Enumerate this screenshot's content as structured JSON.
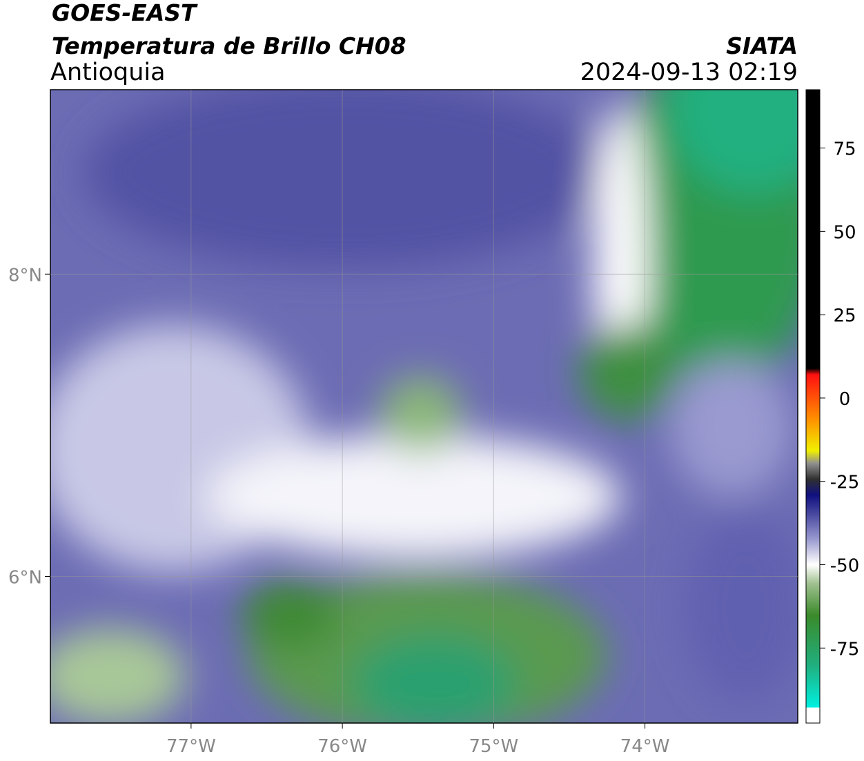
{
  "header": {
    "title": "GOES-EAST",
    "subtitle": "Temperatura de Brillo CH08",
    "region": "Antioquia",
    "source": "SIATA",
    "datetime": "2024-09-13 02:19"
  },
  "map": {
    "xlim": [
      -77.93,
      -72.99
    ],
    "ylim": [
      5.03,
      9.22
    ],
    "xticks": [
      {
        "value": -77,
        "label": "77°W"
      },
      {
        "value": -76,
        "label": "76°W"
      },
      {
        "value": -75,
        "label": "75°W"
      },
      {
        "value": -74,
        "label": "74°W"
      }
    ],
    "yticks": [
      {
        "value": 8,
        "label": "8°N"
      },
      {
        "value": 6,
        "label": "6°N"
      }
    ],
    "grid": true
  },
  "colorbar": {
    "lim": [
      -97.5,
      92.5
    ],
    "ticks": [
      75,
      50,
      25,
      0,
      -25,
      -50,
      -75
    ]
  }
}
